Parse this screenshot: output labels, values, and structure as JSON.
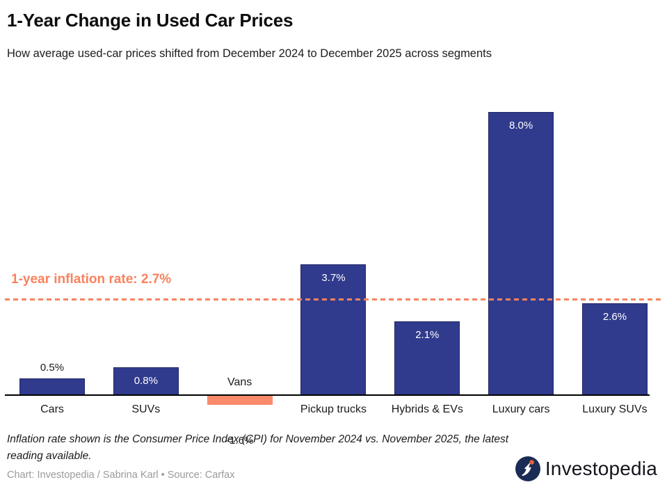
{
  "header": {
    "title": "1-Year Change in Used Car Prices",
    "subtitle": "How average used-car prices shifted from December 2024 to December 2025 across segments"
  },
  "chart_data": {
    "type": "bar",
    "title": "1-Year Change in Used Car Prices",
    "xlabel": "",
    "ylabel": "",
    "ylim": [
      -1.6,
      8.5
    ],
    "grid": false,
    "legend_position": "none",
    "categories": [
      "Cars",
      "SUVs",
      "Vans",
      "Pickup trucks",
      "Hybrids & EVs",
      "Luxury cars",
      "Luxury SUVs"
    ],
    "values": [
      0.5,
      0.8,
      -1.6,
      3.7,
      2.1,
      8.0,
      2.6
    ],
    "value_labels": [
      "0.5%",
      "0.8%",
      "-1.6%",
      "3.7%",
      "2.1%",
      "8.0%",
      "2.6%"
    ],
    "positive_color": "#313B8D",
    "negative_color": "#FB8A6B",
    "reference_line": {
      "label": "1-year inflation rate: 2.7%",
      "value": 2.7,
      "color": "#F8835F",
      "style": "dashed"
    }
  },
  "footnote": {
    "text": "Inflation rate shown is the Consumer Price Index (CPI) for November 2024 vs. November 2025, the latest reading available."
  },
  "credit": {
    "text": "Chart: Investopedia / Sabrina Karl • Source: Carfax"
  },
  "logo": {
    "text": "Investopedia",
    "icon_bg_color": "#1A2B55",
    "icon_dot_color": "#E8603C"
  }
}
